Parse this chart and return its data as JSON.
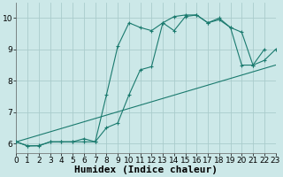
{
  "xlabel": "Humidex (Indice chaleur)",
  "xlim": [
    0,
    23
  ],
  "ylim": [
    5.7,
    10.5
  ],
  "bg_color": "#cce8e8",
  "grid_color": "#aacccc",
  "line_color": "#1a7a6e",
  "line1_x": [
    0,
    1,
    2,
    3,
    4,
    5,
    6,
    7,
    8,
    9,
    10,
    11,
    12,
    13,
    14,
    15,
    16,
    17,
    18,
    19,
    20,
    21,
    22
  ],
  "line1_y": [
    6.05,
    5.92,
    5.93,
    6.05,
    6.05,
    6.05,
    6.05,
    6.05,
    7.55,
    9.1,
    9.85,
    9.7,
    9.6,
    9.85,
    10.05,
    10.1,
    10.1,
    9.85,
    10.0,
    9.7,
    8.5,
    8.5,
    9.0
  ],
  "line2_x": [
    0,
    1,
    2,
    3,
    4,
    5,
    6,
    7,
    8,
    9,
    10,
    11,
    12,
    13,
    14,
    15,
    16,
    17,
    18,
    19,
    20,
    21,
    22,
    23
  ],
  "line2_y": [
    6.05,
    5.92,
    5.92,
    6.05,
    6.05,
    6.05,
    6.15,
    6.05,
    6.5,
    6.65,
    7.55,
    8.35,
    8.45,
    9.85,
    9.6,
    10.05,
    10.1,
    9.85,
    9.95,
    9.7,
    9.55,
    8.5,
    8.65,
    9.0
  ],
  "line3_x": [
    0,
    23
  ],
  "line3_y": [
    6.05,
    8.5
  ],
  "xticks": [
    0,
    1,
    2,
    3,
    4,
    5,
    6,
    7,
    8,
    9,
    10,
    11,
    12,
    13,
    14,
    15,
    16,
    17,
    18,
    19,
    20,
    21,
    22,
    23
  ],
  "yticks": [
    6,
    7,
    8,
    9,
    10
  ],
  "tick_fontsize": 6.5,
  "label_fontsize": 8
}
